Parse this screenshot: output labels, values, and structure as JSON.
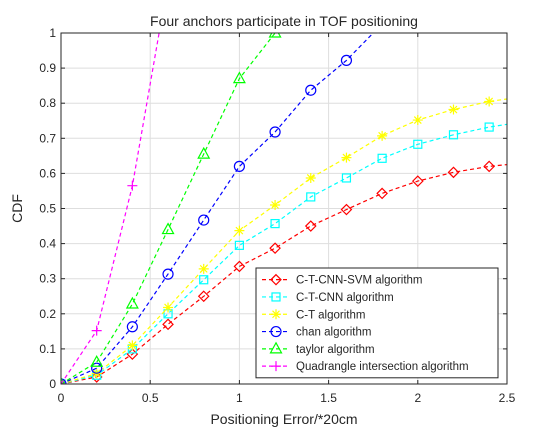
{
  "chart_data": {
    "type": "line",
    "title": "Four anchors participate in TOF positioning",
    "xlabel": "Positioning Error/*20cm",
    "ylabel": "CDF",
    "xlim": [
      0,
      2.5
    ],
    "ylim": [
      0,
      1
    ],
    "xticks": [
      "0",
      "0.5",
      "1",
      "1.5",
      "2",
      "2.5"
    ],
    "yticks": [
      "0",
      "0.1",
      "0.2",
      "0.3",
      "0.4",
      "0.5",
      "0.6",
      "0.7",
      "0.8",
      "0.9",
      "1"
    ],
    "grid": true,
    "legend_position": "bottom-right",
    "series": [
      {
        "name": "C-T-CNN-SVM algorithm",
        "color": "#ff0000",
        "marker": "diamond",
        "points": [
          [
            0,
            0
          ],
          [
            0.2,
            0.02
          ],
          [
            0.4,
            0.085
          ],
          [
            0.6,
            0.17
          ],
          [
            0.8,
            0.25
          ],
          [
            1.0,
            0.335
          ],
          [
            1.2,
            0.387
          ],
          [
            1.4,
            0.45
          ],
          [
            1.6,
            0.497
          ],
          [
            1.8,
            0.543
          ],
          [
            2.0,
            0.578
          ],
          [
            2.2,
            0.603
          ],
          [
            2.4,
            0.62
          ],
          [
            2.5,
            0.625
          ]
        ]
      },
      {
        "name": "C-T-CNN algorithm",
        "color": "#00ffff",
        "marker": "square",
        "points": [
          [
            0,
            0
          ],
          [
            0.2,
            0.025
          ],
          [
            0.4,
            0.1
          ],
          [
            0.6,
            0.2
          ],
          [
            0.8,
            0.297
          ],
          [
            1.0,
            0.395
          ],
          [
            1.2,
            0.457
          ],
          [
            1.4,
            0.533
          ],
          [
            1.6,
            0.587
          ],
          [
            1.8,
            0.643
          ],
          [
            2.0,
            0.683
          ],
          [
            2.2,
            0.71
          ],
          [
            2.4,
            0.732
          ],
          [
            2.5,
            0.74
          ]
        ]
      },
      {
        "name": "C-T algorithm",
        "color": "#ffff00",
        "marker": "star",
        "points": [
          [
            0,
            0
          ],
          [
            0.2,
            0.03
          ],
          [
            0.4,
            0.11
          ],
          [
            0.6,
            0.218
          ],
          [
            0.8,
            0.328
          ],
          [
            1.0,
            0.437
          ],
          [
            1.2,
            0.51
          ],
          [
            1.4,
            0.587
          ],
          [
            1.6,
            0.645
          ],
          [
            1.8,
            0.707
          ],
          [
            2.0,
            0.752
          ],
          [
            2.2,
            0.782
          ],
          [
            2.4,
            0.805
          ],
          [
            2.5,
            0.812
          ]
        ]
      },
      {
        "name": "chan algorithm",
        "color": "#0000ff",
        "marker": "circle",
        "points": [
          [
            0,
            0
          ],
          [
            0.2,
            0.045
          ],
          [
            0.4,
            0.163
          ],
          [
            0.6,
            0.313
          ],
          [
            0.8,
            0.467
          ],
          [
            1.0,
            0.62
          ],
          [
            1.2,
            0.718
          ],
          [
            1.4,
            0.837
          ],
          [
            1.6,
            0.922
          ],
          [
            1.75,
            1.0
          ]
        ]
      },
      {
        "name": "taylor algorithm",
        "color": "#00ff00",
        "marker": "triangle",
        "points": [
          [
            0,
            0
          ],
          [
            0.2,
            0.062
          ],
          [
            0.4,
            0.228
          ],
          [
            0.6,
            0.44
          ],
          [
            0.8,
            0.655
          ],
          [
            1.0,
            0.87
          ],
          [
            1.2,
            1.0
          ]
        ]
      },
      {
        "name": "Quadrangle intersection algorithm",
        "color": "#ff00ff",
        "marker": "plus",
        "points": [
          [
            0,
            0
          ],
          [
            0.2,
            0.152
          ],
          [
            0.4,
            0.565
          ],
          [
            0.55,
            1.0
          ]
        ]
      }
    ],
    "marker_x": [
      0,
      0.2,
      0.4,
      0.6,
      0.8,
      1.0,
      1.2,
      1.4,
      1.6,
      1.8,
      2.0,
      2.2,
      2.4
    ]
  }
}
